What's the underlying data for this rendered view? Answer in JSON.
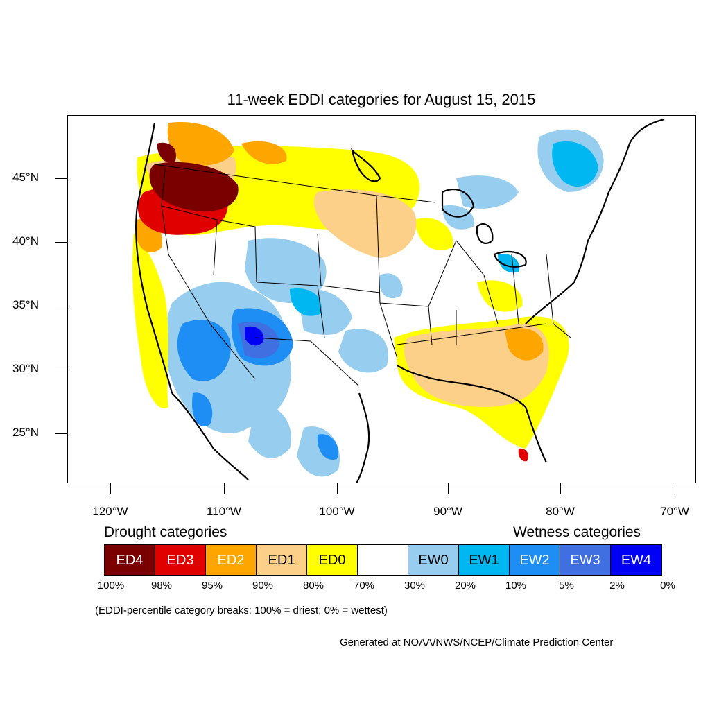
{
  "title": "11-week EDDI categories for August 15, 2015",
  "axes": {
    "lat_labels": [
      "45°N",
      "40°N",
      "35°N",
      "30°N",
      "25°N"
    ],
    "lon_labels": [
      "120°W",
      "110°W",
      "100°W",
      "90°W",
      "80°W",
      "70°W"
    ]
  },
  "legend": {
    "drought_heading": "Drought categories",
    "wetness_heading": "Wetness categories",
    "categories": [
      {
        "label": "ED4",
        "color": "#7a0000",
        "text_color": "#ffffff"
      },
      {
        "label": "ED3",
        "color": "#e10000",
        "text_color": "#ffffff"
      },
      {
        "label": "ED2",
        "color": "#ffa500",
        "text_color": "#ffffff"
      },
      {
        "label": "ED1",
        "color": "#fdd08a",
        "text_color": "#000000"
      },
      {
        "label": "ED0",
        "color": "#ffff00",
        "text_color": "#000000"
      },
      {
        "label": "",
        "color": "#ffffff",
        "text_color": "#000000"
      },
      {
        "label": "EW0",
        "color": "#97cdee",
        "text_color": "#000000"
      },
      {
        "label": "EW1",
        "color": "#00b7f1",
        "text_color": "#000000"
      },
      {
        "label": "EW2",
        "color": "#1e8ef4",
        "text_color": "#ffffff"
      },
      {
        "label": "EW3",
        "color": "#3f6fe0",
        "text_color": "#ffffff"
      },
      {
        "label": "EW4",
        "color": "#0000f5",
        "text_color": "#ffffff"
      }
    ],
    "percentiles": [
      "100%",
      "98%",
      "95%",
      "90%",
      "80%",
      "70%",
      "30%",
      "20%",
      "10%",
      "5%",
      "2%",
      "0%"
    ]
  },
  "note": "(EDDI-percentile category breaks: 100% = driest; 0% = wettest)",
  "credit": "Generated at NOAA/NWS/NCEP/Climate Prediction Center"
}
